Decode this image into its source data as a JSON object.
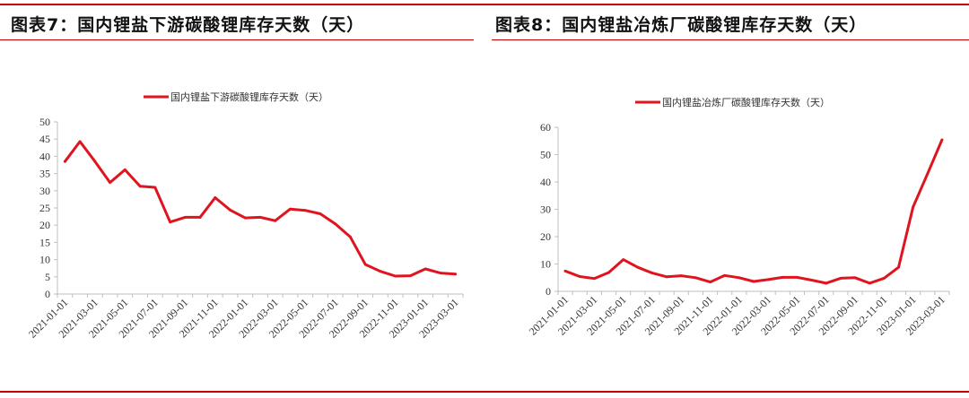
{
  "colors": {
    "accent": "#c00000",
    "series": "#e0141e",
    "axis": "#bfbfbf",
    "text": "#333333"
  },
  "panels": {
    "left": {
      "title": "图表7：国内锂盐下游碳酸锂库存天数（天）"
    },
    "right": {
      "title": "图表8：国内锂盐冶炼厂碳酸锂库存天数（天）"
    }
  },
  "chart_data": [
    {
      "type": "line",
      "legend_position": "top",
      "grid": false,
      "ylim": [
        0,
        50
      ],
      "yticks": [
        0,
        5,
        10,
        15,
        20,
        25,
        30,
        35,
        40,
        45,
        50
      ],
      "x": [
        "2021-01-01",
        "2021-02-01",
        "2021-03-01",
        "2021-04-01",
        "2021-05-01",
        "2021-06-01",
        "2021-07-01",
        "2021-08-01",
        "2021-09-01",
        "2021-10-01",
        "2021-11-01",
        "2021-12-01",
        "2022-01-01",
        "2022-02-01",
        "2022-03-01",
        "2022-04-01",
        "2022-05-01",
        "2022-06-01",
        "2022-07-01",
        "2022-08-01",
        "2022-09-01",
        "2022-10-01",
        "2022-11-01",
        "2022-12-01",
        "2023-01-01",
        "2023-02-01",
        "2023-03-01"
      ],
      "xtick_labels": [
        "2021-01-01",
        "2021-03-01",
        "2021-05-01",
        "2021-07-01",
        "2021-09-01",
        "2021-11-01",
        "2022-01-01",
        "2022-03-01",
        "2022-05-01",
        "2022-07-01",
        "2022-09-01",
        "2022-11-01",
        "2023-01-01",
        "2023-03-01"
      ],
      "series": [
        {
          "name": "国内锂盐下游碳酸锂库存天数（天）",
          "values": [
            38.5,
            44.3,
            38.5,
            32.4,
            36.1,
            31.3,
            31.0,
            20.9,
            22.3,
            22.3,
            28.0,
            24.4,
            22.1,
            22.3,
            21.3,
            24.7,
            24.3,
            23.3,
            20.4,
            16.6,
            8.6,
            6.6,
            5.2,
            5.3,
            7.3,
            6.1,
            5.8
          ]
        }
      ]
    },
    {
      "type": "line",
      "legend_position": "top",
      "grid": false,
      "ylim": [
        0,
        60
      ],
      "yticks": [
        0,
        10,
        20,
        30,
        40,
        50,
        60
      ],
      "x": [
        "2021-01-01",
        "2021-02-01",
        "2021-03-01",
        "2021-04-01",
        "2021-05-01",
        "2021-06-01",
        "2021-07-01",
        "2021-08-01",
        "2021-09-01",
        "2021-10-01",
        "2021-11-01",
        "2021-12-01",
        "2022-01-01",
        "2022-02-01",
        "2022-03-01",
        "2022-04-01",
        "2022-05-01",
        "2022-06-01",
        "2022-07-01",
        "2022-08-01",
        "2022-09-01",
        "2022-10-01",
        "2022-11-01",
        "2022-12-01",
        "2023-01-01",
        "2023-02-01",
        "2023-03-01"
      ],
      "xtick_labels": [
        "2021-01-01",
        "2021-03-01",
        "2021-05-01",
        "2021-07-01",
        "2021-09-01",
        "2021-11-01",
        "2022-01-01",
        "2022-03-01",
        "2022-05-01",
        "2022-07-01",
        "2022-09-01",
        "2022-11-01",
        "2023-01-01",
        "2023-03-01"
      ],
      "series": [
        {
          "name": "国内锂盐冶炼厂碳酸锂库存天数（天）",
          "values": [
            7.4,
            5.4,
            4.7,
            6.9,
            11.6,
            8.8,
            6.7,
            5.3,
            5.7,
            5.0,
            3.4,
            5.8,
            5.0,
            3.6,
            4.3,
            5.1,
            5.1,
            4.1,
            3.0,
            4.8,
            5.0,
            3.0,
            4.8,
            8.8,
            30.8,
            43.0,
            55.4
          ]
        }
      ]
    }
  ]
}
